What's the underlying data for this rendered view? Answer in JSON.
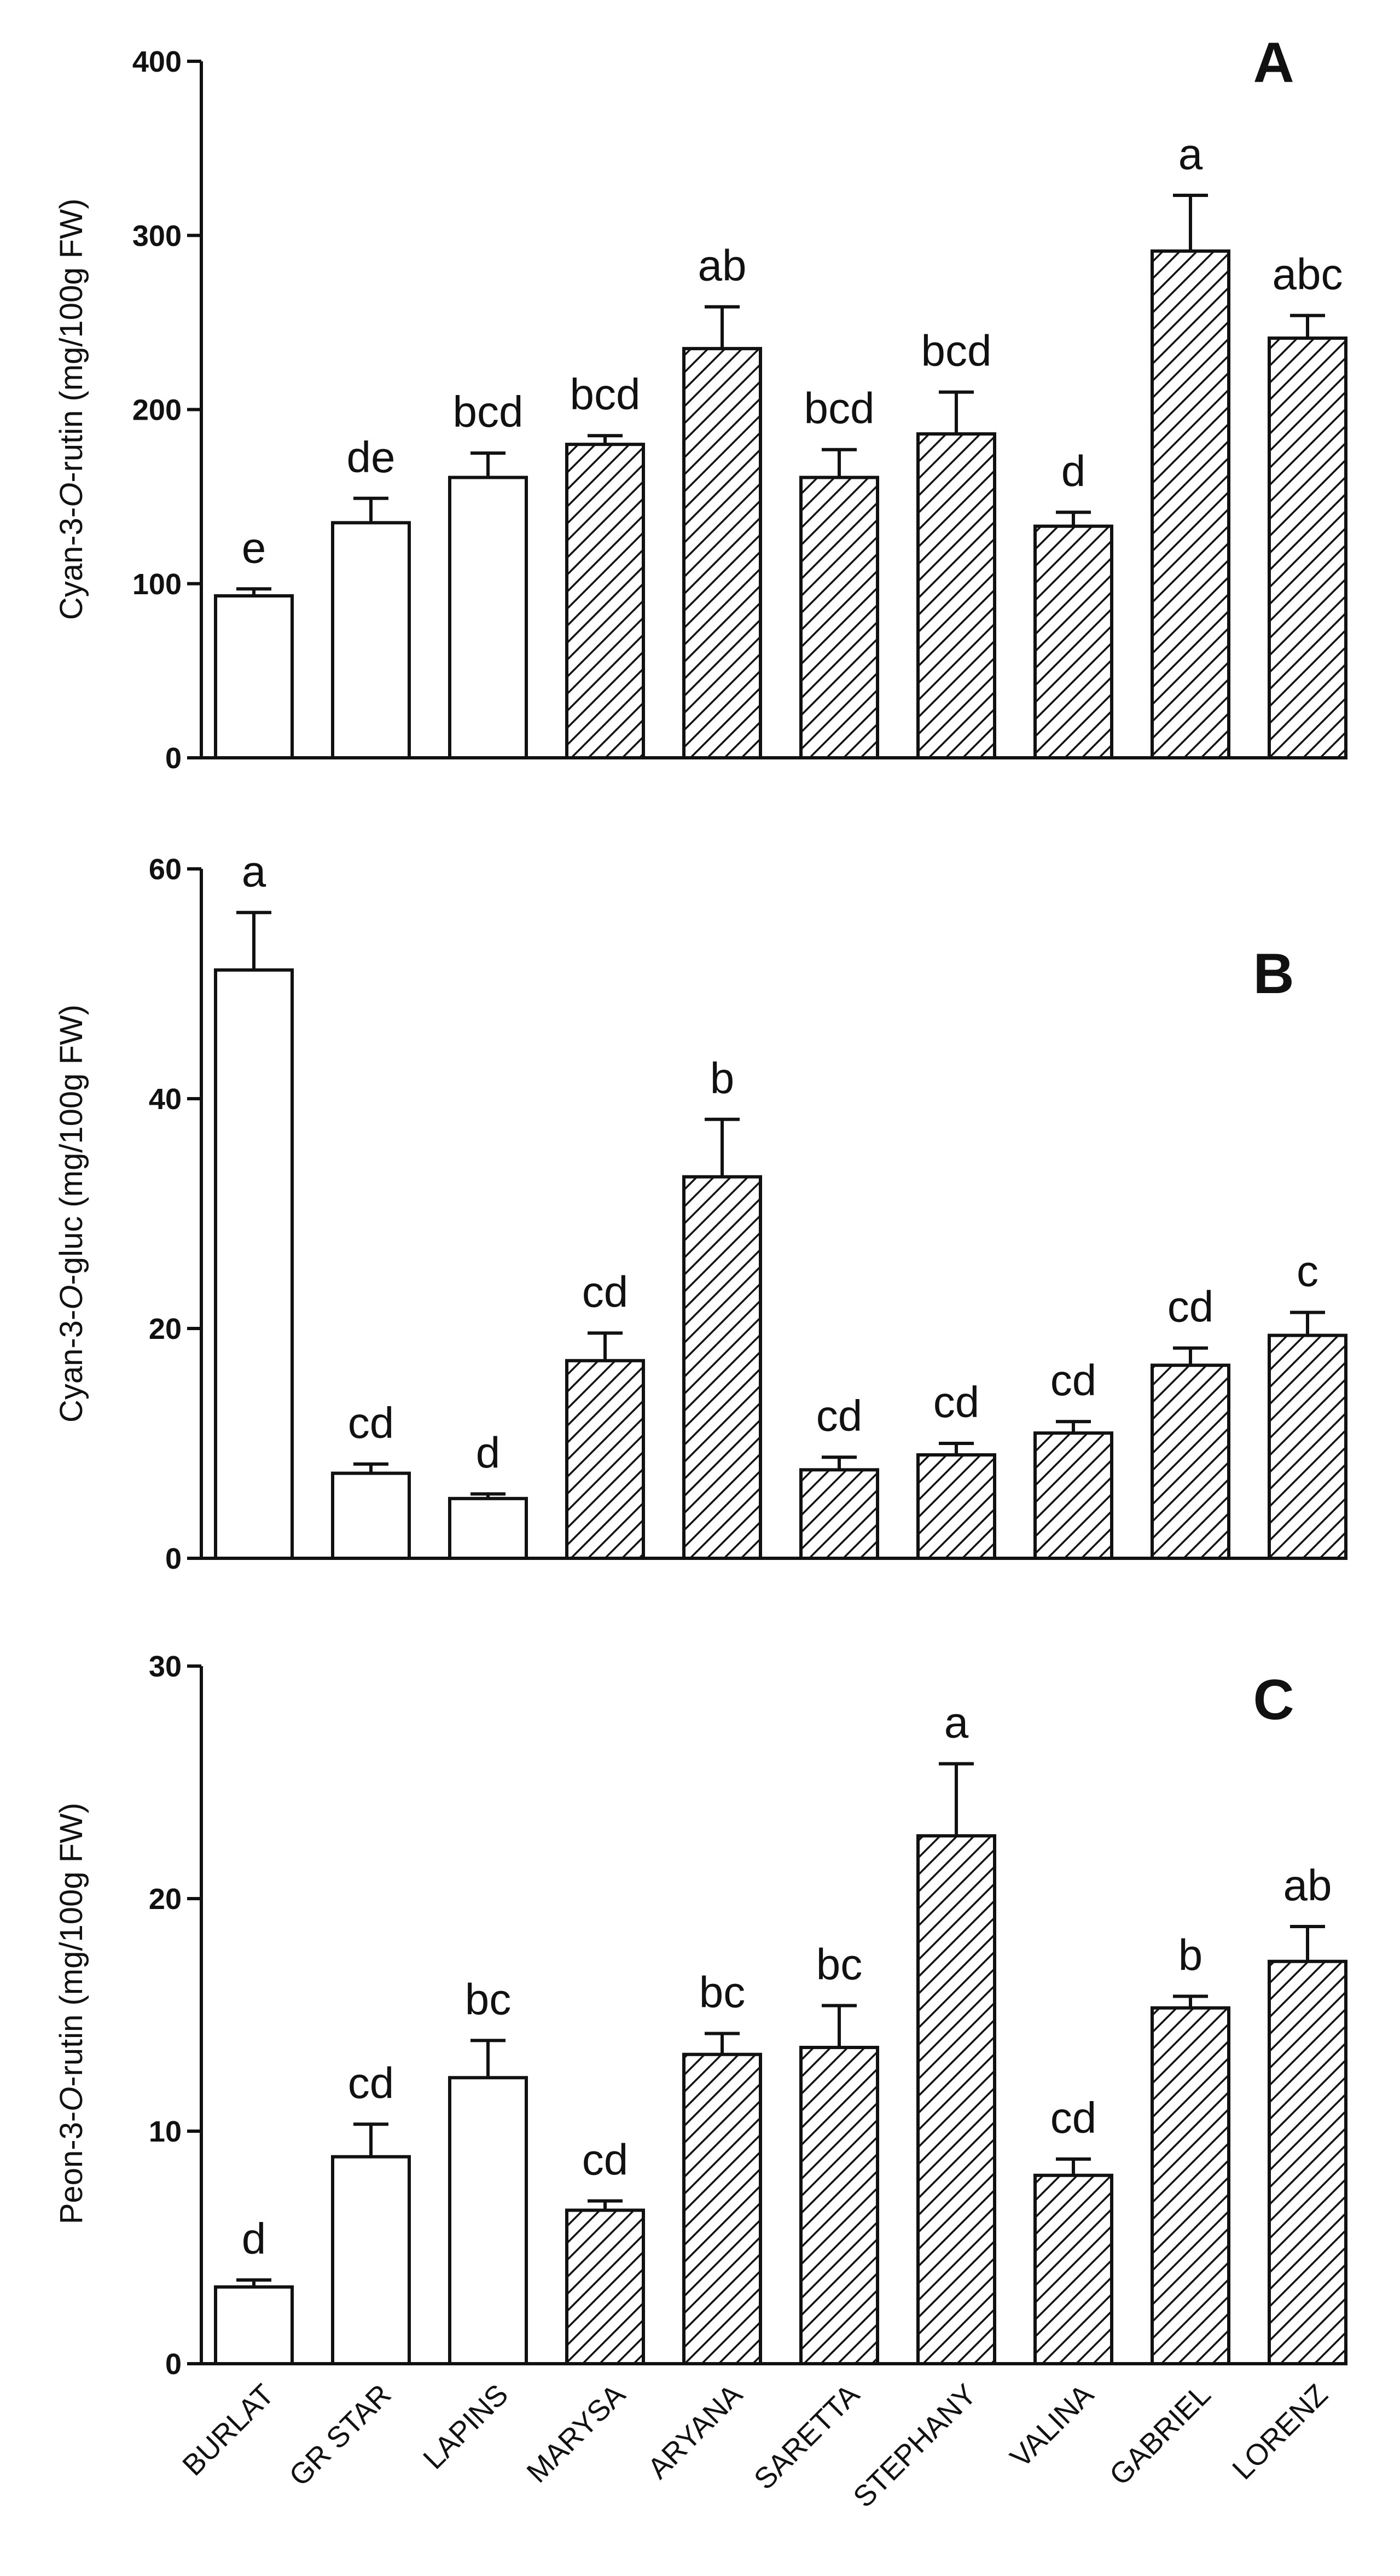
{
  "chart_data": [
    {
      "type": "bar",
      "panel": "A",
      "title": "",
      "xlabel": "",
      "ylabel": "Cyan-3-O-rutin (mg/100g FW)",
      "ylabel_parts": [
        "Cyan-3-",
        "O",
        "-rutin (mg/100g FW)"
      ],
      "ylim": [
        0,
        400
      ],
      "yticks": [
        0,
        100,
        200,
        300,
        400
      ],
      "categories": [
        "BURLAT",
        "GR STAR",
        "LAPINS",
        "MARYSA",
        "ARYANA",
        "SARETTA",
        "STEPHANY",
        "VALINA",
        "GABRIEL",
        "LORENZ"
      ],
      "values": [
        93,
        135,
        161,
        180,
        235,
        161,
        186,
        133,
        291,
        241
      ],
      "errors": [
        4,
        14,
        14,
        5,
        24,
        16,
        24,
        8,
        32,
        13
      ],
      "letters": [
        "e",
        "de",
        "bcd",
        "bcd",
        "ab",
        "bcd",
        "bcd",
        "d",
        "a",
        "abc"
      ],
      "hatched": [
        false,
        false,
        false,
        true,
        true,
        true,
        true,
        true,
        true,
        true
      ]
    },
    {
      "type": "bar",
      "panel": "B",
      "title": "",
      "xlabel": "",
      "ylabel": "Cyan-3-O-gluc (mg/100g FW)",
      "ylabel_parts": [
        "Cyan-3-",
        "O",
        "-gluc (mg/100g FW)"
      ],
      "ylim": [
        0,
        60
      ],
      "yticks": [
        0,
        20,
        40,
        60
      ],
      "categories": [
        "BURLAT",
        "GR STAR",
        "LAPINS",
        "MARYSA",
        "ARYANA",
        "SARETTA",
        "STEPHANY",
        "VALINA",
        "GABRIEL",
        "LORENZ"
      ],
      "values": [
        51.2,
        7.4,
        5.2,
        17.2,
        33.2,
        7.7,
        9.0,
        10.9,
        16.8,
        19.4
      ],
      "errors": [
        5.0,
        0.8,
        0.4,
        2.4,
        5.0,
        1.1,
        1.0,
        1.0,
        1.5,
        2.0
      ],
      "letters": [
        "a",
        "cd",
        "d",
        "cd",
        "b",
        "cd",
        "cd",
        "cd",
        "cd",
        "c"
      ],
      "hatched": [
        false,
        false,
        false,
        true,
        true,
        true,
        true,
        true,
        true,
        true
      ]
    },
    {
      "type": "bar",
      "panel": "C",
      "title": "",
      "xlabel": "",
      "ylabel": "Peon-3-O-rutin (mg/100g FW)",
      "ylabel_parts": [
        "Peon-3-",
        "O",
        "-rutin (mg/100g FW)"
      ],
      "ylim": [
        0,
        30
      ],
      "yticks": [
        0,
        10,
        20,
        30
      ],
      "categories": [
        "BURLAT",
        "GR STAR",
        "LAPINS",
        "MARYSA",
        "ARYANA",
        "SARETTA",
        "STEPHANY",
        "VALINA",
        "GABRIEL",
        "LORENZ"
      ],
      "values": [
        3.3,
        8.9,
        12.3,
        6.6,
        13.3,
        13.6,
        22.7,
        8.1,
        15.3,
        17.3
      ],
      "errors": [
        0.3,
        1.4,
        1.6,
        0.4,
        0.9,
        1.8,
        3.1,
        0.7,
        0.5,
        1.5
      ],
      "letters": [
        "d",
        "cd",
        "bc",
        "cd",
        "bc",
        "bc",
        "a",
        "cd",
        "b",
        "ab"
      ],
      "hatched": [
        false,
        false,
        false,
        true,
        true,
        true,
        true,
        true,
        true,
        true
      ],
      "show_category_labels": true
    }
  ]
}
